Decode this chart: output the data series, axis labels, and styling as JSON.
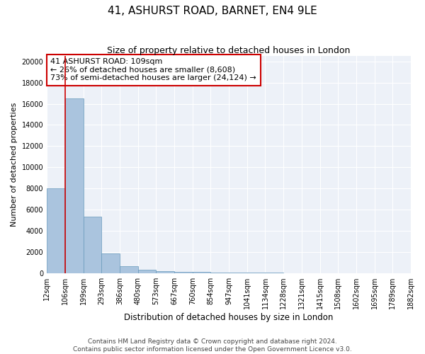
{
  "title": "41, ASHURST ROAD, BARNET, EN4 9LE",
  "subtitle": "Size of property relative to detached houses in London",
  "xlabel": "Distribution of detached houses by size in London",
  "ylabel": "Number of detached properties",
  "bar_values": [
    8050,
    16500,
    5350,
    1850,
    700,
    320,
    200,
    170,
    140,
    100,
    80,
    60,
    40,
    30,
    20,
    15,
    10,
    8,
    5,
    3
  ],
  "bar_labels": [
    "12sqm",
    "106sqm",
    "199sqm",
    "293sqm",
    "386sqm",
    "480sqm",
    "573sqm",
    "667sqm",
    "760sqm",
    "854sqm",
    "947sqm",
    "1041sqm",
    "1134sqm",
    "1228sqm",
    "1321sqm",
    "1415sqm",
    "1508sqm",
    "1602sqm",
    "1695sqm",
    "1789sqm",
    "1882sqm"
  ],
  "bar_color": "#aac4de",
  "bar_edge_color": "#6699bb",
  "vline_color": "#cc0000",
  "annotation_text": "41 ASHURST ROAD: 109sqm\n← 26% of detached houses are smaller (8,608)\n73% of semi-detached houses are larger (24,124) →",
  "annotation_box_color": "#ffffff",
  "annotation_box_edge_color": "#cc0000",
  "ylim": [
    0,
    20500
  ],
  "yticks": [
    0,
    2000,
    4000,
    6000,
    8000,
    10000,
    12000,
    14000,
    16000,
    18000,
    20000
  ],
  "background_color": "#edf1f8",
  "grid_color": "#ffffff",
  "footer_text": "Contains HM Land Registry data © Crown copyright and database right 2024.\nContains public sector information licensed under the Open Government Licence v3.0.",
  "title_fontsize": 11,
  "subtitle_fontsize": 9,
  "annotation_fontsize": 8,
  "ylabel_fontsize": 8,
  "xlabel_fontsize": 8.5,
  "tick_fontsize": 7,
  "footer_fontsize": 6.5
}
